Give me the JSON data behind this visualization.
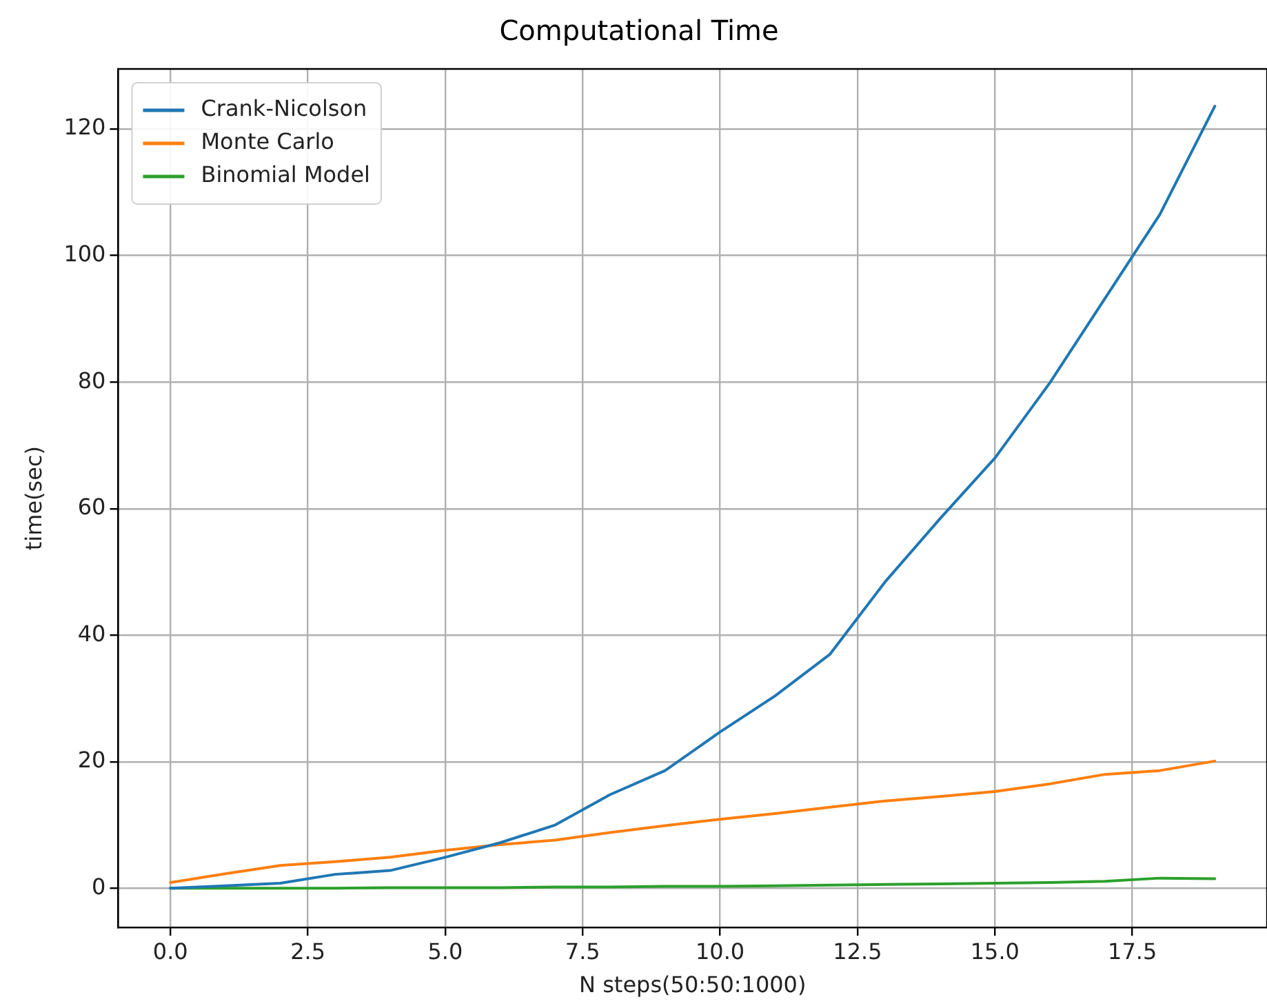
{
  "chart_data": {
    "type": "line",
    "title": "Computational Time",
    "xlabel": "N steps(50:50:1000)",
    "ylabel": "time(sec)",
    "x": [
      0,
      1,
      2,
      3,
      4,
      5,
      6,
      7,
      8,
      9,
      10,
      11,
      12,
      13,
      14,
      15,
      16,
      17,
      18,
      19
    ],
    "series": [
      {
        "name": "Crank-Nicolson",
        "color": "#1f77b4",
        "values": [
          0,
          0.4,
          0.8,
          2.2,
          2.8,
          4.9,
          7.2,
          10,
          14.8,
          18.6,
          24.7,
          30.4,
          37,
          48.4,
          58.4,
          68,
          79.9,
          93.2,
          106.5,
          123.6
        ]
      },
      {
        "name": "Monte Carlo",
        "color": "#ff7f0e",
        "values": [
          0.9,
          2.3,
          3.6,
          4.2,
          4.9,
          6,
          6.9,
          7.6,
          8.8,
          9.9,
          10.9,
          11.8,
          12.8,
          13.8,
          14.5,
          15.3,
          16.5,
          18,
          18.6,
          20.1
        ]
      },
      {
        "name": "Binomial Model",
        "color": "#2ca02c",
        "values": [
          0,
          0,
          0,
          0,
          0.1,
          0.1,
          0.1,
          0.2,
          0.2,
          0.3,
          0.3,
          0.4,
          0.5,
          0.6,
          0.7,
          0.8,
          0.9,
          1.1,
          1.6,
          1.5
        ]
      }
    ],
    "xlim": [
      -0.95,
      19.95
    ],
    "ylim": [
      -6.2,
      129.5
    ],
    "xticks": [
      {
        "value": 0,
        "label": "0.0"
      },
      {
        "value": 2.5,
        "label": "2.5"
      },
      {
        "value": 5,
        "label": "5.0"
      },
      {
        "value": 7.5,
        "label": "7.5"
      },
      {
        "value": 10,
        "label": "10.0"
      },
      {
        "value": 12.5,
        "label": "12.5"
      },
      {
        "value": 15,
        "label": "15.0"
      },
      {
        "value": 17.5,
        "label": "17.5"
      }
    ],
    "yticks": [
      0,
      20,
      40,
      60,
      80,
      100,
      120
    ],
    "grid": true,
    "legend": "top left",
    "marker": "none",
    "line_style": "solid"
  }
}
